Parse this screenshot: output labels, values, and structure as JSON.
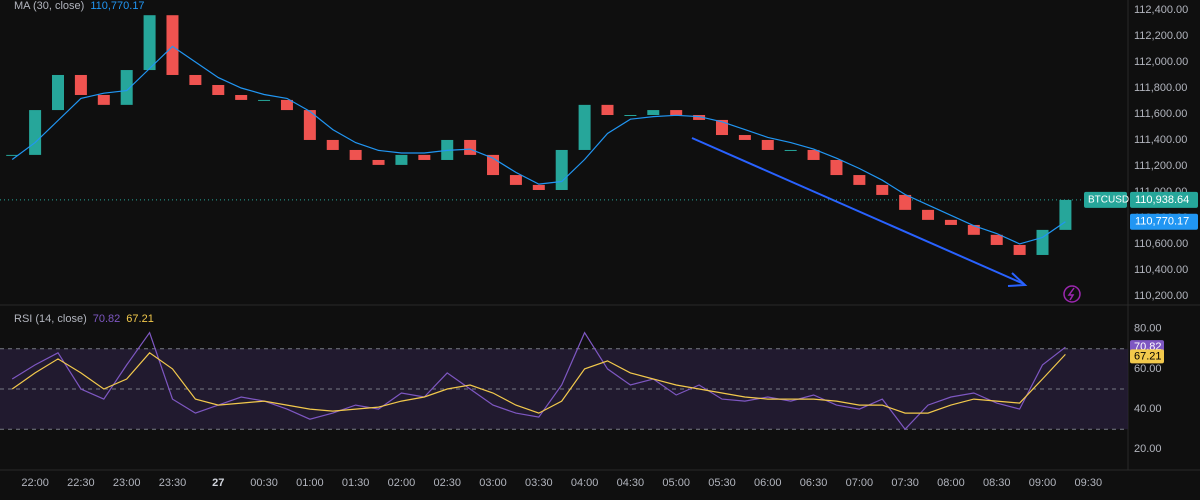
{
  "chart_data": [
    {
      "type": "candlestick",
      "symbol": "BTCUSD",
      "x": [
        -15,
        0,
        15,
        30,
        45,
        60,
        75,
        90,
        105,
        120,
        135,
        150,
        165,
        180,
        195,
        210,
        225,
        240,
        255,
        270,
        285,
        300,
        315,
        330,
        345,
        360,
        375,
        390,
        405,
        420,
        435,
        450,
        465,
        480,
        495,
        510,
        525,
        540,
        555,
        570,
        585,
        600,
        615,
        630,
        645,
        660,
        675
      ],
      "close": [
        111285,
        111630,
        111900,
        111746,
        111670,
        111938,
        112360,
        111900,
        111823,
        111746,
        111708,
        111708,
        111630,
        111400,
        111323,
        111246,
        111208,
        111285,
        111246,
        111400,
        111285,
        111130,
        111054,
        111015,
        111323,
        111670,
        111592,
        111592,
        111630,
        111592,
        111554,
        111438,
        111400,
        111323,
        111323,
        111246,
        111130,
        111054,
        110977,
        110862,
        110785,
        110746,
        110670,
        110592,
        110515,
        110708,
        110938.64
      ],
      "close_last_label": "110,938.64",
      "up_color": "#26a69a",
      "down_color": "#ef5350",
      "series": [
        {
          "name": "MA (30, close)",
          "color": "#2196f3",
          "last_label": "110,770.17",
          "values": [
            111250,
            111380,
            111550,
            111720,
            111760,
            111780,
            111950,
            112120,
            112000,
            111880,
            111800,
            111750,
            111720,
            111620,
            111480,
            111380,
            111320,
            111300,
            111300,
            111320,
            111330,
            111260,
            111150,
            111060,
            111080,
            111250,
            111450,
            111560,
            111580,
            111590,
            111580,
            111540,
            111480,
            111420,
            111380,
            111330,
            111260,
            111180,
            111090,
            110980,
            110900,
            110820,
            110740,
            110680,
            110600,
            110650,
            110770.17
          ]
        }
      ],
      "xlim": [
        -23,
        716
      ],
      "ylim": [
        110130,
        112477
      ],
      "yticks": [
        {
          "value": 112400,
          "label": "112,400.00"
        },
        {
          "value": 112200,
          "label": "112,200.00"
        },
        {
          "value": 112000,
          "label": "112,000.00"
        },
        {
          "value": 111800,
          "label": "111,800.00"
        },
        {
          "value": 111600,
          "label": "111,600.00"
        },
        {
          "value": 111400,
          "label": "111,400.00"
        },
        {
          "value": 111200,
          "label": "111,200.00"
        },
        {
          "value": 111000,
          "label": "111,000.00"
        },
        {
          "value": 110800,
          "label": "110,800.00"
        },
        {
          "value": 110600,
          "label": "110,600.00"
        },
        {
          "value": 110400,
          "label": "110,400.00"
        },
        {
          "value": 110200,
          "label": "110,200.00"
        }
      ]
    },
    {
      "type": "line",
      "series": [
        {
          "name": "RSI (14, close)",
          "color": "#7e57c2",
          "last_label": "70.82",
          "values": [
            55,
            62,
            68,
            50,
            45,
            62,
            78,
            45,
            38,
            42,
            46,
            44,
            40,
            35,
            38,
            42,
            40,
            48,
            46,
            58,
            50,
            42,
            38,
            36,
            52,
            78,
            60,
            52,
            55,
            47,
            52,
            45,
            44,
            46,
            44,
            47,
            42,
            40,
            45,
            30,
            42,
            46,
            48,
            43,
            40,
            62,
            70.82
          ]
        },
        {
          "color": "#f2c94c",
          "last_label": "67.21",
          "values": [
            50,
            58,
            65,
            58,
            50,
            55,
            68,
            60,
            45,
            42,
            43,
            44,
            42,
            40,
            39,
            40,
            41,
            44,
            46,
            50,
            52,
            48,
            42,
            38,
            44,
            60,
            64,
            58,
            55,
            52,
            50,
            48,
            46,
            45,
            45,
            45,
            44,
            42,
            42,
            38,
            38,
            42,
            45,
            44,
            43,
            55,
            67.21
          ]
        }
      ],
      "hlines": [
        70,
        50,
        30
      ],
      "band_color": "#2a1f3d",
      "ylim": [
        9.7,
        91.8
      ],
      "yticks": [
        {
          "value": 80,
          "label": "80.00"
        },
        {
          "value": 60,
          "label": "60.00"
        },
        {
          "value": 40,
          "label": "40.00"
        },
        {
          "value": 20,
          "label": "20.00"
        }
      ],
      "xticks": [
        {
          "value": 0,
          "label": "22:00"
        },
        {
          "value": 30,
          "label": "22:30"
        },
        {
          "value": 60,
          "label": "23:00"
        },
        {
          "value": 90,
          "label": "23:30"
        },
        {
          "value": 120,
          "label": "27"
        },
        {
          "value": 150,
          "label": "00:30"
        },
        {
          "value": 180,
          "label": "01:00"
        },
        {
          "value": 210,
          "label": "01:30"
        },
        {
          "value": 240,
          "label": "02:00"
        },
        {
          "value": 270,
          "label": "02:30"
        },
        {
          "value": 300,
          "label": "03:00"
        },
        {
          "value": 330,
          "label": "03:30"
        },
        {
          "value": 360,
          "label": "04:00"
        },
        {
          "value": 390,
          "label": "04:30"
        },
        {
          "value": 420,
          "label": "05:00"
        },
        {
          "value": 450,
          "label": "05:30"
        },
        {
          "value": 480,
          "label": "06:00"
        },
        {
          "value": 510,
          "label": "06:30"
        },
        {
          "value": 540,
          "label": "07:00"
        },
        {
          "value": 570,
          "label": "07:30"
        },
        {
          "value": 600,
          "label": "08:00"
        },
        {
          "value": 630,
          "label": "08:30"
        },
        {
          "value": 660,
          "label": "09:00"
        },
        {
          "value": 690,
          "label": "09:30"
        }
      ]
    }
  ]
}
